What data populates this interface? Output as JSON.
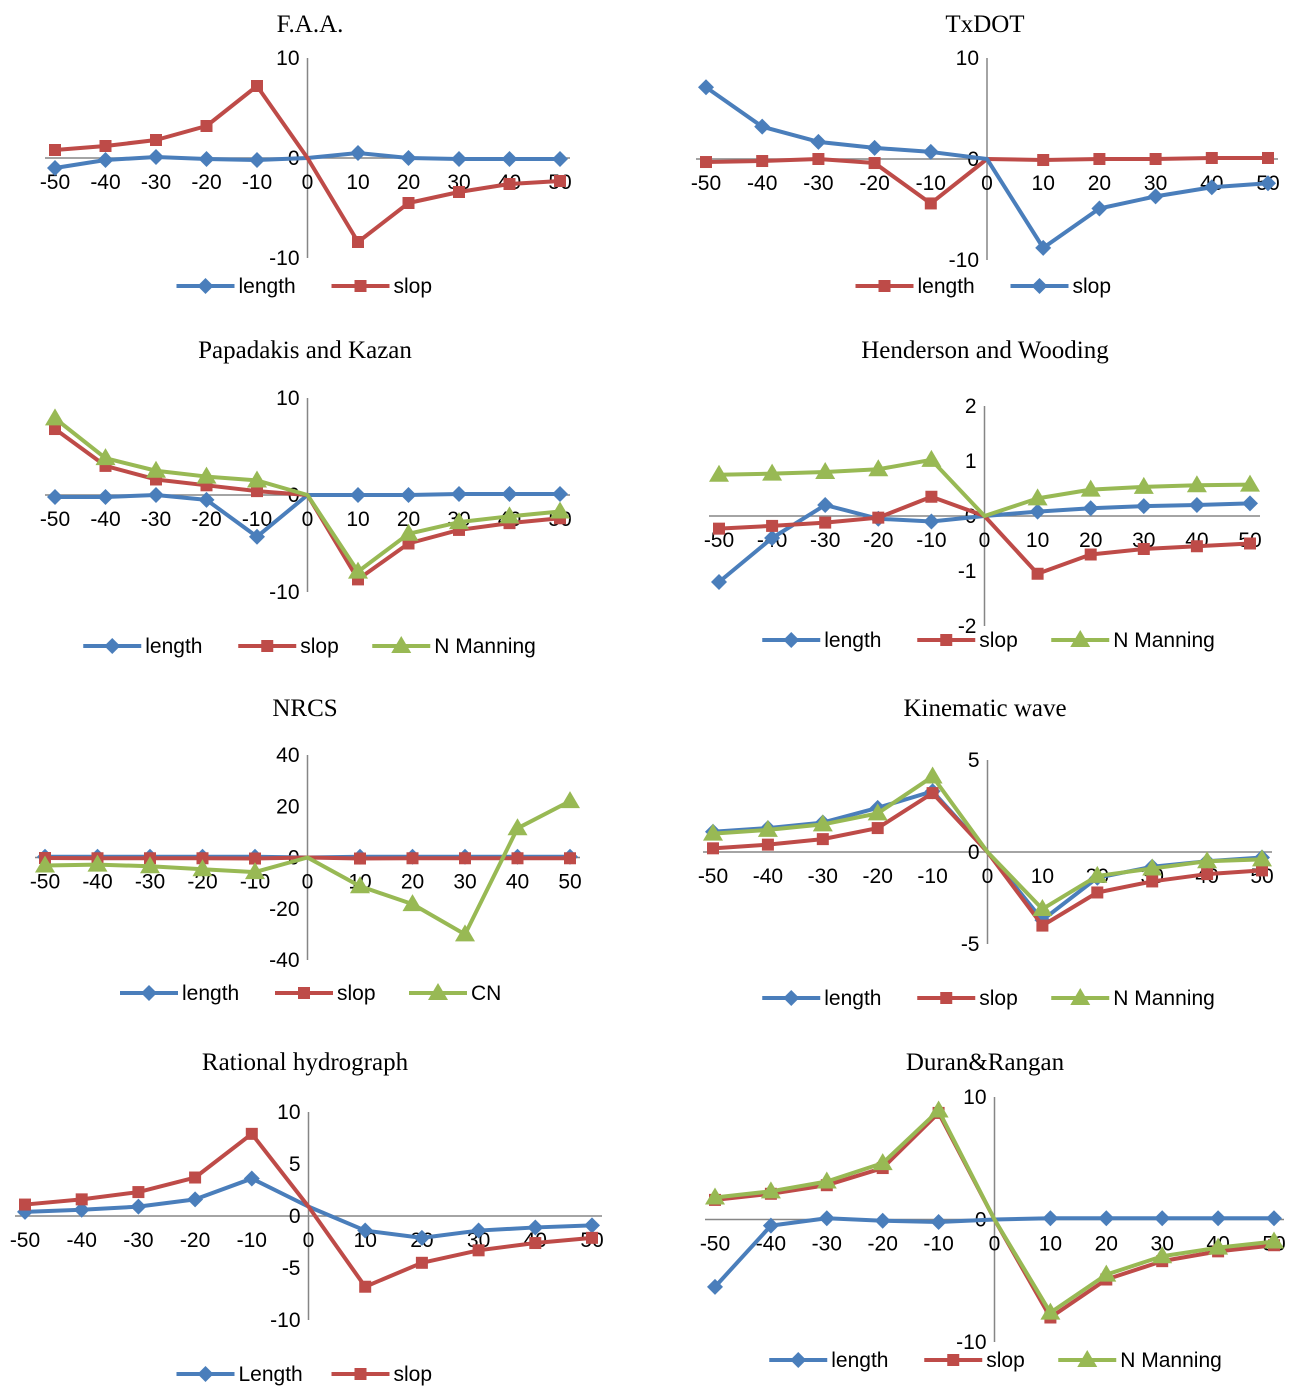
{
  "colors": {
    "blue": "#4a7ebb",
    "red": "#be4b48",
    "green": "#98b954",
    "axis": "#868686"
  },
  "chart_data": [
    {
      "type": "line",
      "title": "F.A.A.",
      "x": [
        -50,
        -40,
        -30,
        -20,
        -10,
        0,
        10,
        20,
        30,
        40,
        50
      ],
      "x_tick_labels": [
        "-50",
        "-40",
        "-30",
        "-20",
        "-10",
        "0",
        "10",
        "20",
        "30",
        "40",
        "50"
      ],
      "y_ticks": [
        "10",
        "0",
        "-10"
      ],
      "ylim": [
        -10,
        10
      ],
      "series": [
        {
          "name": "length",
          "marker": "diamond",
          "color": "#4a7ebb",
          "values": [
            -1.0,
            -0.2,
            0.1,
            -0.1,
            -0.2,
            0,
            0.5,
            0.0,
            -0.1,
            -0.1,
            -0.1
          ]
        },
        {
          "name": "slop",
          "marker": "square",
          "color": "#be4b48",
          "values": [
            0.8,
            1.2,
            1.8,
            3.2,
            7.2,
            0,
            -8.4,
            -4.5,
            -3.4,
            -2.6,
            -2.3
          ]
        }
      ]
    },
    {
      "type": "line",
      "title": "TxDOT",
      "x": [
        -50,
        -40,
        -30,
        -20,
        -10,
        0,
        10,
        20,
        30,
        40,
        50
      ],
      "x_tick_labels": [
        "-50",
        "-40",
        "-30",
        "-20",
        "-10",
        "0",
        "10",
        "20",
        "30",
        "40",
        "50"
      ],
      "y_ticks": [
        "10",
        "0",
        "-10"
      ],
      "ylim": [
        -10,
        10
      ],
      "series": [
        {
          "name": "length",
          "marker": "square",
          "color": "#be4b48",
          "values": [
            -0.3,
            -0.2,
            0.0,
            -0.4,
            -4.4,
            0,
            -0.1,
            0.0,
            0.0,
            0.1,
            0.1
          ]
        },
        {
          "name": "slop",
          "marker": "diamond",
          "color": "#4a7ebb",
          "values": [
            7.1,
            3.2,
            1.7,
            1.1,
            0.7,
            0,
            -8.8,
            -4.9,
            -3.7,
            -2.8,
            -2.4
          ]
        }
      ]
    },
    {
      "type": "line",
      "title": "Papadakis and Kazan",
      "x": [
        -50,
        -40,
        -30,
        -20,
        -10,
        0,
        10,
        20,
        30,
        40,
        50
      ],
      "x_tick_labels": [
        "-50",
        "-40",
        "-30",
        "-20",
        "-10",
        "0",
        "10",
        "20",
        "30",
        "40",
        "50"
      ],
      "y_ticks": [
        "10",
        "0",
        "-10"
      ],
      "ylim": [
        -10,
        10
      ],
      "series": [
        {
          "name": "length",
          "marker": "diamond",
          "color": "#4a7ebb",
          "values": [
            -0.2,
            -0.2,
            0.0,
            -0.5,
            -4.3,
            0,
            0.0,
            0.0,
            0.1,
            0.1,
            0.1
          ]
        },
        {
          "name": "slop",
          "marker": "square",
          "color": "#be4b48",
          "values": [
            6.8,
            3.0,
            1.6,
            1.0,
            0.4,
            0,
            -8.7,
            -5.0,
            -3.6,
            -2.9,
            -2.4
          ]
        },
        {
          "name": "N Manning",
          "marker": "triangle",
          "color": "#98b954",
          "values": [
            7.9,
            3.8,
            2.5,
            1.9,
            1.5,
            0,
            -7.9,
            -4.0,
            -2.8,
            -2.2,
            -1.7
          ]
        }
      ]
    },
    {
      "type": "line",
      "title": "Henderson and Wooding",
      "x": [
        -50,
        -40,
        -30,
        -20,
        -10,
        0,
        10,
        20,
        30,
        40,
        50
      ],
      "x_tick_labels": [
        "-50",
        "-40",
        "-30",
        "-20",
        "-10",
        "0",
        "10",
        "20",
        "30",
        "40",
        "50"
      ],
      "y_ticks": [
        "2",
        "1",
        "0",
        "-1",
        "-2"
      ],
      "ylim": [
        -2,
        2
      ],
      "series": [
        {
          "name": "length",
          "marker": "diamond",
          "color": "#4a7ebb",
          "values": [
            -1.2,
            -0.4,
            0.2,
            -0.05,
            -0.1,
            0,
            0.08,
            0.14,
            0.18,
            0.2,
            0.23
          ]
        },
        {
          "name": "slop",
          "marker": "square",
          "color": "#be4b48",
          "values": [
            -0.23,
            -0.18,
            -0.12,
            -0.03,
            0.35,
            0,
            -1.05,
            -0.7,
            -0.6,
            -0.55,
            -0.5
          ]
        },
        {
          "name": "N Manning",
          "marker": "triangle",
          "color": "#98b954",
          "values": [
            0.75,
            0.77,
            0.8,
            0.85,
            1.02,
            0,
            0.32,
            0.48,
            0.53,
            0.56,
            0.57
          ]
        }
      ]
    },
    {
      "type": "line",
      "title": "NRCS",
      "x": [
        -50,
        -40,
        -30,
        -20,
        -10,
        0,
        10,
        20,
        30,
        40,
        50
      ],
      "x_tick_labels": [
        "-50",
        "-40",
        "-30",
        "-20",
        "-10",
        "0",
        "10",
        "20",
        "30",
        "40",
        "50"
      ],
      "y_ticks": [
        "40",
        "20",
        "0",
        "-20",
        "-40"
      ],
      "ylim": [
        -40,
        40
      ],
      "series": [
        {
          "name": "length",
          "marker": "diamond",
          "color": "#4a7ebb",
          "values": [
            0.3,
            0.3,
            0.3,
            0.3,
            0.3,
            0,
            0.3,
            0.3,
            0.3,
            0.3,
            0.3
          ]
        },
        {
          "name": "slop",
          "marker": "square",
          "color": "#be4b48",
          "values": [
            -0.2,
            -0.3,
            -0.3,
            -0.3,
            -0.4,
            0,
            -0.4,
            -0.3,
            -0.3,
            -0.3,
            -0.3
          ]
        },
        {
          "name": "CN",
          "marker": "triangle",
          "color": "#98b954",
          "values": [
            -3.1,
            -2.8,
            -3.4,
            -4.6,
            -5.7,
            0,
            -11.2,
            -18.2,
            -30.0,
            11.4,
            22.0
          ]
        }
      ]
    },
    {
      "type": "line",
      "title": "Kinematic wave",
      "x": [
        -50,
        -40,
        -30,
        -20,
        -10,
        0,
        10,
        20,
        30,
        40,
        50
      ],
      "x_tick_labels": [
        "-50",
        "-40",
        "-30",
        "-20",
        "-10",
        "0",
        "10",
        "20",
        "30",
        "40",
        "50"
      ],
      "y_ticks": [
        "5",
        "0",
        "-5"
      ],
      "ylim": [
        -5,
        5
      ],
      "series": [
        {
          "name": "length",
          "marker": "diamond",
          "color": "#4a7ebb",
          "values": [
            1.1,
            1.3,
            1.6,
            2.4,
            3.3,
            0,
            -3.7,
            -1.4,
            -0.8,
            -0.5,
            -0.3
          ]
        },
        {
          "name": "slop",
          "marker": "square",
          "color": "#be4b48",
          "values": [
            0.2,
            0.4,
            0.7,
            1.3,
            3.2,
            0,
            -4.0,
            -2.2,
            -1.6,
            -1.2,
            -1.0
          ]
        },
        {
          "name": "N Manning",
          "marker": "triangle",
          "color": "#98b954",
          "values": [
            1.0,
            1.2,
            1.5,
            2.1,
            4.1,
            0,
            -3.1,
            -1.3,
            -0.9,
            -0.5,
            -0.4
          ]
        }
      ]
    },
    {
      "type": "line",
      "title": "Rational hydrograph",
      "x": [
        -50,
        -40,
        -30,
        -20,
        -10,
        0,
        10,
        20,
        30,
        40,
        50
      ],
      "x_tick_labels": [
        "-50",
        "-40",
        "-30",
        "-20",
        "-10",
        "0",
        "10",
        "20",
        "30",
        "40",
        "50"
      ],
      "y_ticks": [
        "10",
        "5",
        "0",
        "-5",
        "-10"
      ],
      "ylim": [
        -10,
        10
      ],
      "series": [
        {
          "name": "Length",
          "marker": "diamond",
          "color": "#4a7ebb",
          "values": [
            0.4,
            0.6,
            0.9,
            1.6,
            3.6,
            0.9,
            -1.4,
            -2.1,
            -1.4,
            -1.1,
            -0.9
          ]
        },
        {
          "name": "slop",
          "marker": "square",
          "color": "#be4b48",
          "values": [
            1.1,
            1.6,
            2.3,
            3.7,
            7.9,
            0.9,
            -6.8,
            -4.5,
            -3.3,
            -2.6,
            -2.1
          ]
        }
      ]
    },
    {
      "type": "line",
      "title": "Duran&Rangan",
      "x": [
        -50,
        -40,
        -30,
        -20,
        -10,
        0,
        10,
        20,
        30,
        40,
        50
      ],
      "x_tick_labels": [
        "-50",
        "-40",
        "-30",
        "-20",
        "-10",
        "0",
        "10",
        "20",
        "30",
        "40",
        "50"
      ],
      "y_ticks": [
        "10",
        "0",
        "-10"
      ],
      "ylim": [
        -10,
        10
      ],
      "series": [
        {
          "name": "length",
          "marker": "diamond",
          "color": "#4a7ebb",
          "values": [
            -5.5,
            -0.5,
            0.1,
            -0.1,
            -0.2,
            0,
            0.1,
            0.1,
            0.1,
            0.1,
            0.1
          ]
        },
        {
          "name": "slop",
          "marker": "square",
          "color": "#be4b48",
          "values": [
            1.6,
            2.1,
            2.8,
            4.2,
            8.7,
            0,
            -8.0,
            -4.9,
            -3.4,
            -2.6,
            -2.1
          ]
        },
        {
          "name": "N Manning",
          "marker": "triangle",
          "color": "#98b954",
          "values": [
            1.8,
            2.3,
            3.1,
            4.6,
            8.9,
            0,
            -7.6,
            -4.5,
            -3.0,
            -2.3,
            -1.8
          ]
        }
      ]
    }
  ]
}
